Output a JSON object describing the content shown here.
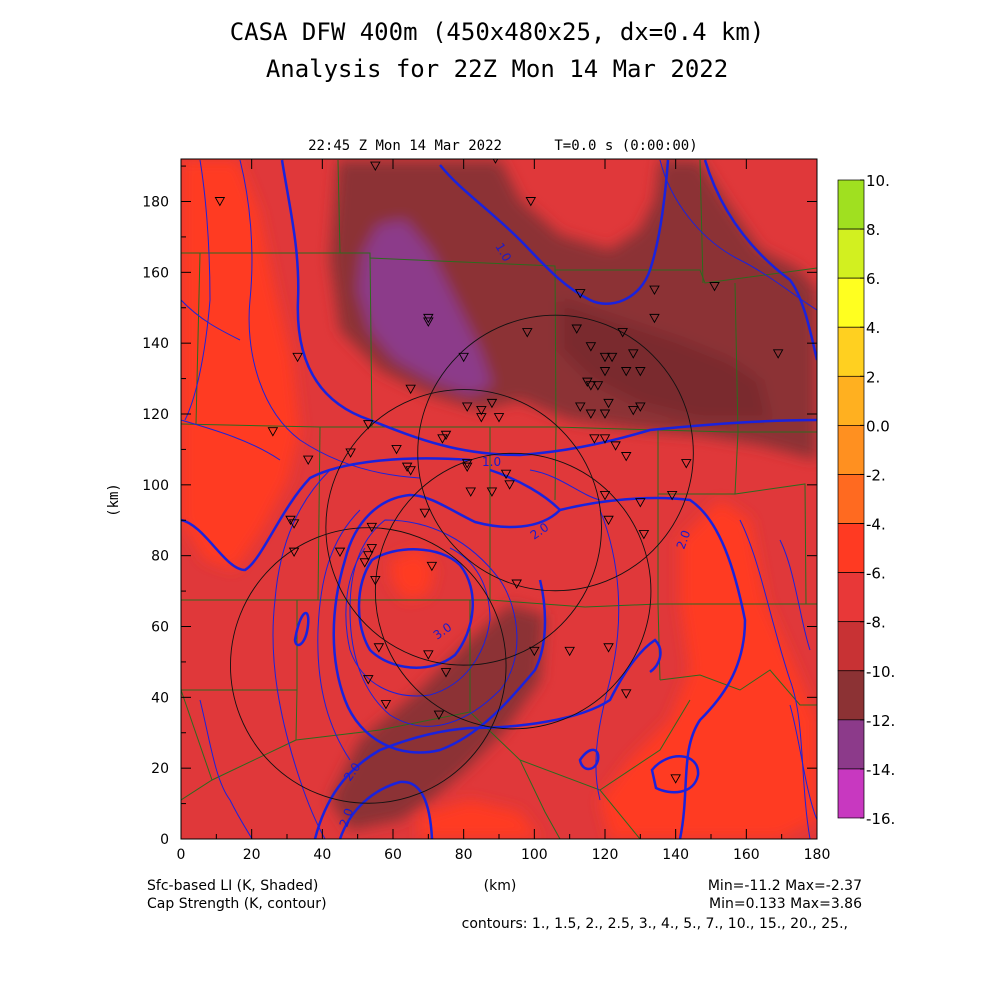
{
  "chart_data": {
    "type": "heatmap",
    "title": "CASA DFW 400m (450x480x25, dx=0.4 km)",
    "subtitle": "Analysis for 22Z Mon 14 Mar 2022",
    "valid_time": "22:45 Z Mon 14 Mar 2022",
    "time_label": "T=0.0 s (0:00:00)",
    "xlabel": "(km)",
    "ylabel": "(km)",
    "xlim": [
      0,
      180
    ],
    "ylim": [
      0,
      192
    ],
    "x_ticks": [
      "0",
      "20",
      "40",
      "60",
      "80",
      "100",
      "120",
      "140",
      "160",
      "180"
    ],
    "y_ticks": [
      "0",
      "20",
      "40",
      "60",
      "80",
      "100",
      "120",
      "140",
      "160",
      "180"
    ],
    "shaded_field": "Sfc-based LI (K, Shaded)",
    "contour_field": "Cap Strength (K, contour)",
    "shaded_stats": "Min=-11.2 Max=-2.37",
    "contour_stats": "Min=0.133 Max=3.86",
    "contour_levels_text": "contours: 1., 1.5, 2., 2.5, 3., 4., 5., 7., 10., 15., 20., 25.,",
    "colorbar": {
      "labels": [
        "10.",
        "8.",
        "6.",
        "4.",
        "2.",
        "0.0",
        "-2.",
        "-4.",
        "-6.",
        "-8.",
        "-10.",
        "-12.",
        "-14.",
        "-16."
      ],
      "colors": [
        "#a0e020",
        "#d2f020",
        "#ffff20",
        "#ffd020",
        "#ffb020",
        "#ff9020",
        "#ff6a20",
        "#ff3a22",
        "#e83838",
        "#c83234",
        "#8c3234",
        "#8c3a8a",
        "#c838c0",
        "#e040e8"
      ]
    },
    "contour_labels": [
      "1.0",
      "1.0",
      "2.0",
      "2.0",
      "3.0",
      "2.0",
      "2.0"
    ],
    "radar_rings": [
      {
        "cx": 106,
        "cy": 109,
        "r": 39
      },
      {
        "cx": 80,
        "cy": 88,
        "r": 39
      },
      {
        "cx": 94,
        "cy": 70,
        "r": 39
      },
      {
        "cx": 53,
        "cy": 49,
        "r": 39
      }
    ],
    "stations": [
      [
        11,
        180
      ],
      [
        55,
        190
      ],
      [
        89,
        192
      ],
      [
        99,
        180
      ],
      [
        33,
        136
      ],
      [
        70,
        147
      ],
      [
        70,
        146
      ],
      [
        80,
        136
      ],
      [
        98,
        143
      ],
      [
        65,
        127
      ],
      [
        75,
        114
      ],
      [
        81,
        122
      ],
      [
        85,
        121
      ],
      [
        85,
        119
      ],
      [
        88,
        123
      ],
      [
        90,
        119
      ],
      [
        53,
        117
      ],
      [
        48,
        109
      ],
      [
        61,
        110
      ],
      [
        64,
        105
      ],
      [
        65,
        104
      ],
      [
        74,
        113
      ],
      [
        81,
        106
      ],
      [
        81,
        105
      ],
      [
        88,
        98
      ],
      [
        92,
        103
      ],
      [
        93,
        100
      ],
      [
        113,
        154
      ],
      [
        112,
        144
      ],
      [
        116,
        139
      ],
      [
        115,
        129
      ],
      [
        116,
        128
      ],
      [
        118,
        128
      ],
      [
        120,
        136
      ],
      [
        122,
        136
      ],
      [
        125,
        143
      ],
      [
        128,
        137
      ],
      [
        120,
        132
      ],
      [
        126,
        132
      ],
      [
        130,
        132
      ],
      [
        134,
        155
      ],
      [
        134,
        147
      ],
      [
        128,
        121
      ],
      [
        130,
        122
      ],
      [
        113,
        122
      ],
      [
        116,
        120
      ],
      [
        120,
        120
      ],
      [
        121,
        123
      ],
      [
        117,
        113
      ],
      [
        120,
        113
      ],
      [
        123,
        111
      ],
      [
        126,
        108
      ],
      [
        143,
        106
      ],
      [
        151,
        156
      ],
      [
        169,
        137
      ],
      [
        36,
        107
      ],
      [
        26,
        115
      ],
      [
        31,
        90
      ],
      [
        32,
        89
      ],
      [
        32,
        81
      ],
      [
        45,
        81
      ],
      [
        52,
        78
      ],
      [
        53,
        80
      ],
      [
        54,
        82
      ],
      [
        54,
        88
      ],
      [
        69,
        92
      ],
      [
        55,
        73
      ],
      [
        56,
        54
      ],
      [
        70,
        52
      ],
      [
        75,
        47
      ],
      [
        71,
        77
      ],
      [
        95,
        72
      ],
      [
        100,
        53
      ],
      [
        110,
        53
      ],
      [
        120,
        97
      ],
      [
        121,
        90
      ],
      [
        130,
        95
      ],
      [
        139,
        97
      ],
      [
        121,
        54
      ],
      [
        126,
        41
      ],
      [
        140,
        17
      ],
      [
        131,
        86
      ],
      [
        82,
        98
      ],
      [
        53,
        45
      ],
      [
        58,
        38
      ],
      [
        73,
        35
      ]
    ]
  }
}
